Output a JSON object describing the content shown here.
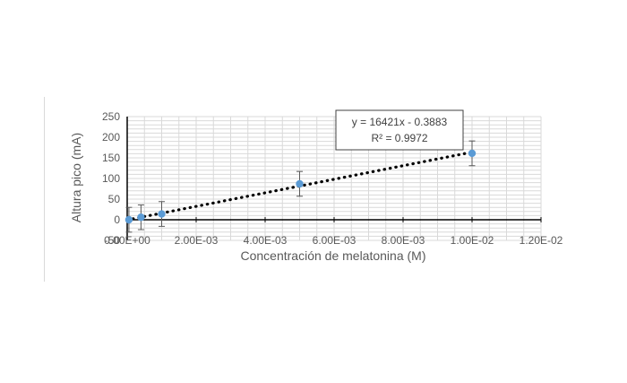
{
  "chart_data": {
    "type": "scatter",
    "title": "",
    "xlabel": "Concentración de melatonina (M)",
    "ylabel": "Altura pico (mA)",
    "xlim": [
      0,
      0.012
    ],
    "ylim": [
      -50,
      250
    ],
    "x_ticks": [
      0,
      0.002,
      0.004,
      0.006,
      0.008,
      0.01,
      0.012
    ],
    "x_tick_labels": [
      "0.00E+00",
      "2.00E-03",
      "4.00E-03",
      "6.00E-03",
      "8.00E-03",
      "1.00E-02",
      "1.20E-02"
    ],
    "y_ticks": [
      -50,
      0,
      50,
      100,
      150,
      200,
      250
    ],
    "y_tick_labels": [
      "-50",
      "0",
      "50",
      "100",
      "150",
      "200",
      "250"
    ],
    "grid": true,
    "points": [
      {
        "x": 5e-05,
        "y": 0,
        "err": 30
      },
      {
        "x": 0.0004,
        "y": 6,
        "err": 30
      },
      {
        "x": 0.001,
        "y": 14,
        "err": 30
      },
      {
        "x": 0.005,
        "y": 87,
        "err": 30
      },
      {
        "x": 0.01,
        "y": 161,
        "err": 30
      }
    ],
    "trendline": {
      "type": "linear",
      "slope": 16421,
      "intercept": -0.3883,
      "equation": "y = 16421x - 0.3883",
      "r_squared": "R² = 0.9972"
    },
    "colors": {
      "marker": "#5b9bd5",
      "trendline": "#000000",
      "error_bar": "#595959",
      "grid": "#d9d9d9",
      "axis": "#000000"
    }
  }
}
